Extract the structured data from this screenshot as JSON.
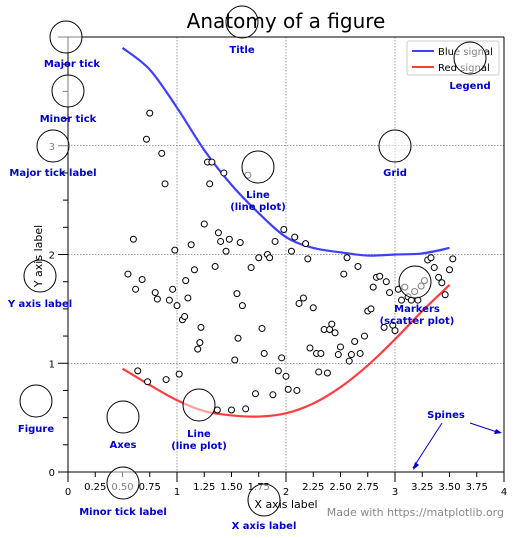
{
  "chart_data": {
    "type": "line",
    "title": "Anatomy of a figure",
    "xlabel": "X axis label",
    "ylabel": "Y axis label",
    "xlim": [
      0,
      4
    ],
    "ylim": [
      0,
      4
    ],
    "major_ticks_x": [
      "0",
      "1",
      "2",
      "3",
      "4"
    ],
    "minor_ticks_x": [
      "0.25",
      "0.50",
      "0.75",
      "1.25",
      "1.50",
      "1.75",
      "2.25",
      "2.50",
      "2.75",
      "3.25",
      "3.50",
      "3.75"
    ],
    "major_ticks_y": [
      "0",
      "1",
      "2",
      "3"
    ],
    "grid": true,
    "legend": "upper right",
    "series": [
      {
        "name": "Blue signal",
        "color": "#3f3fff",
        "kind": "line",
        "x": [
          0.5,
          0.75,
          1.0,
          1.25,
          1.5,
          1.75,
          2.0,
          2.25,
          2.5,
          2.75,
          3.0,
          3.25,
          3.5
        ],
        "y": [
          3.9,
          3.7,
          3.35,
          2.96,
          2.64,
          2.38,
          2.16,
          2.06,
          2.02,
          1.99,
          2.0,
          2.01,
          2.06
        ]
      },
      {
        "name": "Red signal",
        "color": "#ff3f3f",
        "kind": "line",
        "x": [
          0.5,
          0.75,
          1.0,
          1.25,
          1.5,
          1.75,
          2.0,
          2.25,
          2.5,
          2.75,
          3.0,
          3.25,
          3.5
        ],
        "y": [
          0.95,
          0.8,
          0.66,
          0.56,
          0.52,
          0.51,
          0.54,
          0.63,
          0.78,
          0.98,
          1.22,
          1.48,
          1.72
        ]
      },
      {
        "kind": "scatter",
        "color": "#000000",
        "x": [
          0.55,
          0.62,
          0.64,
          0.68,
          0.72,
          0.75,
          0.8,
          0.82,
          0.86,
          0.89,
          0.93,
          0.96,
          0.98,
          1.0,
          1.02,
          1.05,
          1.08,
          1.1,
          1.13,
          1.16,
          1.19,
          1.22,
          1.25,
          1.28,
          1.3,
          1.32,
          1.35,
          1.38,
          1.4,
          1.43,
          1.45,
          1.48,
          1.5,
          1.53,
          1.55,
          1.58,
          1.6,
          1.63,
          1.65,
          1.68,
          1.72,
          1.75,
          1.78,
          1.8,
          1.83,
          1.85,
          1.88,
          1.9,
          1.93,
          1.96,
          1.98,
          2.0,
          2.02,
          2.05,
          2.08,
          2.1,
          2.12,
          2.16,
          2.18,
          2.2,
          2.22,
          2.25,
          2.28,
          2.3,
          2.32,
          2.35,
          2.38,
          2.4,
          2.42,
          2.45,
          2.48,
          2.5,
          2.53,
          2.56,
          2.58,
          2.6,
          2.63,
          2.66,
          2.68,
          2.72,
          2.75,
          2.78,
          2.8,
          2.83,
          2.86,
          2.9,
          2.92,
          2.95,
          2.98,
          3.0,
          3.03,
          3.06,
          3.09,
          3.12,
          3.15,
          3.18,
          3.21,
          3.24,
          3.27,
          3.3,
          3.33,
          3.36,
          3.4,
          3.43,
          3.46,
          3.5,
          3.53,
          0.6,
          0.73,
          0.9,
          1.07,
          1.21,
          1.37,
          1.56
        ],
        "y": [
          1.82,
          1.68,
          0.93,
          1.77,
          3.06,
          3.3,
          1.65,
          1.59,
          2.93,
          2.65,
          1.58,
          1.68,
          2.04,
          1.53,
          0.9,
          1.4,
          1.76,
          1.6,
          2.09,
          1.86,
          1.13,
          1.33,
          2.28,
          2.85,
          2.65,
          2.85,
          1.89,
          2.2,
          2.12,
          2.75,
          2.03,
          2.14,
          0.57,
          1.03,
          1.64,
          2.11,
          1.53,
          0.58,
          2.73,
          1.88,
          0.72,
          1.97,
          1.32,
          1.09,
          2.0,
          1.97,
          0.71,
          2.12,
          0.93,
          1.05,
          2.23,
          0.88,
          0.76,
          2.03,
          2.16,
          0.75,
          1.55,
          1.6,
          2.1,
          1.96,
          1.14,
          1.51,
          1.09,
          0.92,
          1.09,
          1.31,
          0.91,
          1.31,
          1.36,
          1.28,
          1.08,
          1.15,
          1.82,
          1.97,
          1.02,
          1.08,
          1.2,
          1.89,
          1.09,
          1.25,
          1.48,
          1.5,
          1.7,
          1.79,
          1.8,
          1.33,
          1.75,
          1.65,
          1.35,
          1.3,
          1.68,
          1.58,
          1.7,
          1.61,
          1.58,
          1.66,
          1.58,
          1.71,
          1.76,
          1.95,
          1.97,
          1.88,
          1.79,
          1.74,
          1.63,
          1.86,
          1.96,
          2.14,
          0.83,
          0.85,
          1.43,
          1.19,
          0.57,
          1.23
        ],
        "markers_label": "Markers (scatter plot)"
      }
    ],
    "annotations": [
      {
        "label": "Major tick",
        "target_x": 0.0,
        "target_y": 4.0
      },
      {
        "label": "Minor tick",
        "target_x": 0.0,
        "target_y": 3.5
      },
      {
        "label": "Major tick label",
        "target_x": -0.15,
        "target_y": 3.0
      },
      {
        "label": "Y axis label",
        "target_x": -0.3,
        "target_y": 1.8
      },
      {
        "label": "Title",
        "target_x": 1.6,
        "target_y": 4.2
      },
      {
        "label": "Legend",
        "target_x": 3.7,
        "target_y": 3.8
      },
      {
        "label": "Grid",
        "target_x": 3.0,
        "target_y": 3.0
      },
      {
        "label": "Line\n(line plot)",
        "target_x": 1.75,
        "target_y": 2.8
      },
      {
        "label": "Markers\n(scatter plot)",
        "target_x": 3.2,
        "target_y": 1.75
      },
      {
        "label": "Line\n(line plot)",
        "target_x": 1.22,
        "target_y": 0.6
      },
      {
        "label": "Axes",
        "target_x": 0.5,
        "target_y": 0.5
      },
      {
        "label": "Figure",
        "target_x": -0.35,
        "target_y": 0.65
      },
      {
        "label": "Minor tick label",
        "target_x": 0.5,
        "target_y": -0.1
      },
      {
        "label": "X axis label",
        "target_x": 1.8,
        "target_y": -0.25
      },
      {
        "label": "Spines",
        "target_x": 3.5,
        "target_y": 0.55
      }
    ],
    "footer": "Made with https://matplotlib.org"
  }
}
